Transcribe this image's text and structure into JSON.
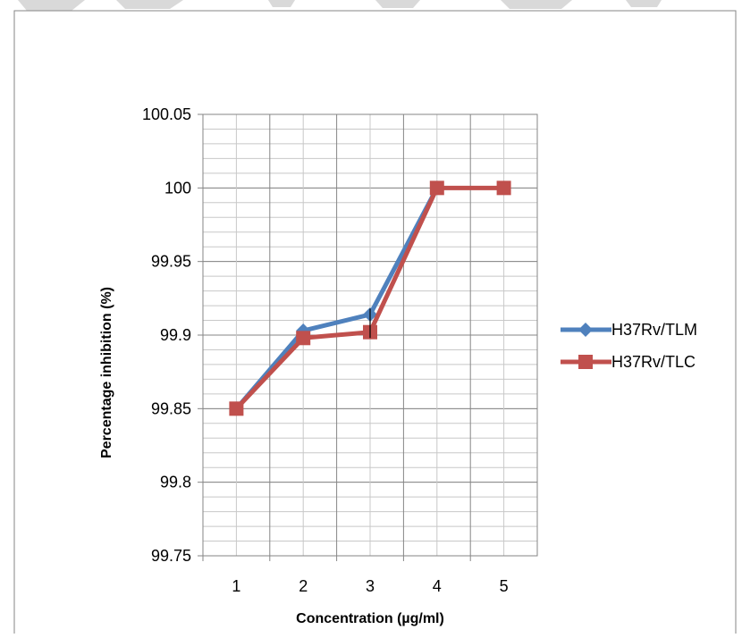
{
  "chart_data": {
    "type": "line",
    "xlabel": "Concentration (µg/ml)",
    "ylabel": "Percentage inhibition (%)",
    "x": [
      1,
      2,
      3,
      4,
      5
    ],
    "ylim": [
      99.75,
      100.05
    ],
    "y_ticks": [
      "99.75",
      "99.8",
      "99.85",
      "99.9",
      "99.95",
      "100",
      "100.05"
    ],
    "grid": true,
    "legend_position": "right",
    "series": [
      {
        "name": "H37Rv/TLM",
        "color": "#4f81bd",
        "marker": "diamond",
        "values": [
          99.85,
          99.903,
          99.914,
          100,
          null
        ]
      },
      {
        "name": "H37Rv/TLC",
        "color": "#c0504d",
        "marker": "square",
        "values": [
          99.85,
          99.898,
          99.902,
          100,
          100
        ]
      }
    ]
  }
}
